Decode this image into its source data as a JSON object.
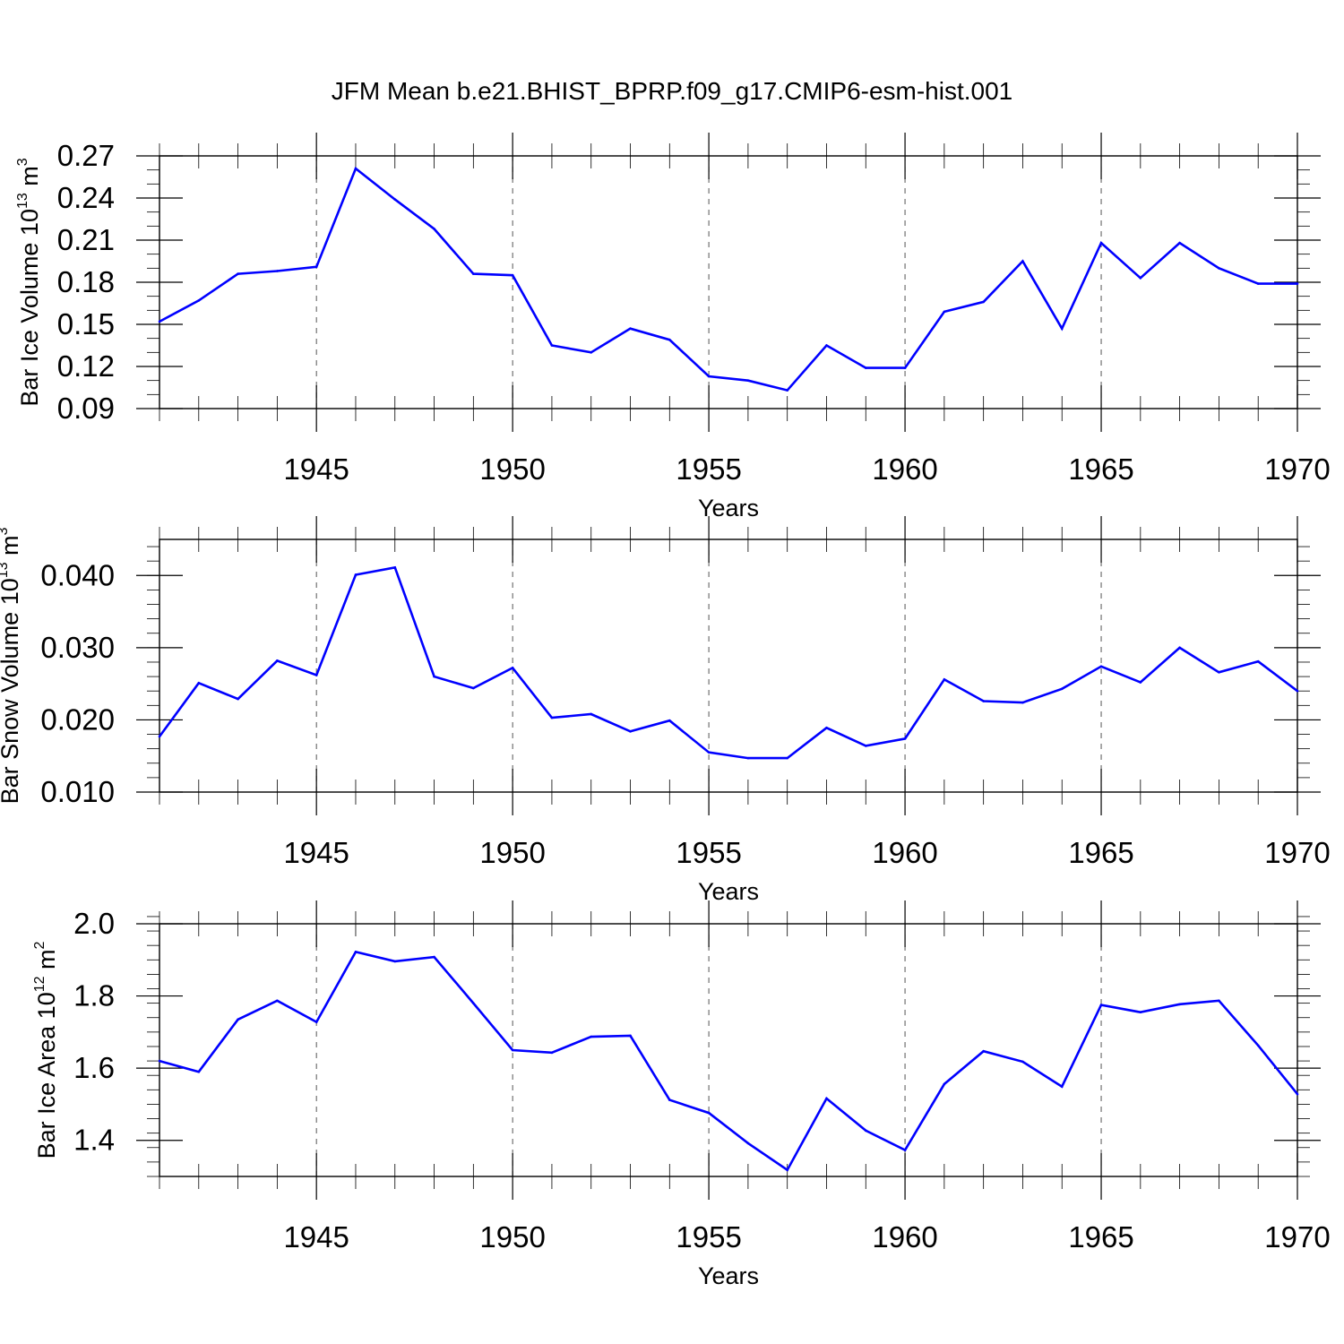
{
  "title": "JFM Mean b.e21.BHIST_BPRP.f09_g17.CMIP6-esm-hist.001",
  "colors": {
    "line": "#0000ff",
    "axis": "#000000",
    "grid": "#555555"
  },
  "chart_data": [
    {
      "type": "line",
      "name": "ice-volume",
      "ylabel_main": "Bar Ice Volume 10",
      "ylabel_exp": "13",
      "ylabel_unit": " m",
      "ylabel_unit_exp": "3",
      "xlabel": "Years",
      "xlim": [
        1941,
        1970
      ],
      "ylim": [
        0.09,
        0.27
      ],
      "yticks": [
        0.09,
        0.12,
        0.15,
        0.18,
        0.21,
        0.24,
        0.27
      ],
      "ytick_labels": [
        "0.09",
        "0.12",
        "0.15",
        "0.18",
        "0.21",
        "0.24",
        "0.27"
      ],
      "yminor_step": 0.01,
      "xticks": [
        1945,
        1950,
        1955,
        1960,
        1965,
        1970
      ],
      "xtick_labels": [
        "1945",
        "1950",
        "1955",
        "1960",
        "1965",
        "1970"
      ],
      "x": [
        1941,
        1942,
        1943,
        1944,
        1945,
        1946,
        1947,
        1948,
        1949,
        1950,
        1951,
        1952,
        1953,
        1954,
        1955,
        1956,
        1957,
        1958,
        1959,
        1960,
        1961,
        1962,
        1963,
        1964,
        1965,
        1966,
        1967,
        1968,
        1969,
        1970
      ],
      "values": [
        0.152,
        0.167,
        0.186,
        0.188,
        0.191,
        0.261,
        0.239,
        0.218,
        0.186,
        0.185,
        0.135,
        0.13,
        0.147,
        0.139,
        0.113,
        0.11,
        0.103,
        0.135,
        0.119,
        0.119,
        0.159,
        0.166,
        0.195,
        0.147,
        0.208,
        0.183,
        0.208,
        0.19,
        0.179,
        0.179
      ]
    },
    {
      "type": "line",
      "name": "snow-volume",
      "ylabel_main": "Bar Snow Volume 10",
      "ylabel_exp": "13",
      "ylabel_unit": " m",
      "ylabel_unit_exp": "3",
      "xlabel": "Years",
      "xlim": [
        1941,
        1970
      ],
      "ylim": [
        0.01,
        0.045
      ],
      "yticks": [
        0.01,
        0.02,
        0.03,
        0.04
      ],
      "ytick_labels": [
        "0.010",
        "0.020",
        "0.030",
        "0.040"
      ],
      "yminor_step": 0.002,
      "xticks": [
        1945,
        1950,
        1955,
        1960,
        1965,
        1970
      ],
      "xtick_labels": [
        "1945",
        "1950",
        "1955",
        "1960",
        "1965",
        "1970"
      ],
      "x": [
        1941,
        1942,
        1943,
        1944,
        1945,
        1946,
        1947,
        1948,
        1949,
        1950,
        1951,
        1952,
        1953,
        1954,
        1955,
        1956,
        1957,
        1958,
        1959,
        1960,
        1961,
        1962,
        1963,
        1964,
        1965,
        1966,
        1967,
        1968,
        1969,
        1970
      ],
      "values": [
        0.0177,
        0.0251,
        0.0229,
        0.0282,
        0.0262,
        0.0401,
        0.0411,
        0.026,
        0.0244,
        0.0272,
        0.0203,
        0.0208,
        0.0184,
        0.0199,
        0.0155,
        0.0147,
        0.0147,
        0.0189,
        0.0164,
        0.0174,
        0.0256,
        0.0226,
        0.0224,
        0.0243,
        0.0274,
        0.0252,
        0.03,
        0.0266,
        0.0281,
        0.024
      ]
    },
    {
      "type": "line",
      "name": "ice-area",
      "ylabel_main": "Bar Ice Area 10",
      "ylabel_exp": "12",
      "ylabel_unit": " m",
      "ylabel_unit_exp": "2",
      "xlabel": "Years",
      "xlim": [
        1941,
        1970
      ],
      "ylim": [
        1.3,
        2.0
      ],
      "yticks": [
        1.4,
        1.6,
        1.8,
        2.0
      ],
      "ytick_labels": [
        "1.4",
        "1.6",
        "1.8",
        "2.0"
      ],
      "yminor_step": 0.04,
      "xticks": [
        1945,
        1950,
        1955,
        1960,
        1965,
        1970
      ],
      "xtick_labels": [
        "1945",
        "1950",
        "1955",
        "1960",
        "1965",
        "1970"
      ],
      "x": [
        1941,
        1942,
        1943,
        1944,
        1945,
        1946,
        1947,
        1948,
        1949,
        1950,
        1951,
        1952,
        1953,
        1954,
        1955,
        1956,
        1957,
        1958,
        1959,
        1960,
        1961,
        1962,
        1963,
        1964,
        1965,
        1966,
        1967,
        1968,
        1969,
        1970
      ],
      "values": [
        1.62,
        1.59,
        1.735,
        1.787,
        1.728,
        1.922,
        1.896,
        1.908,
        1.78,
        1.65,
        1.643,
        1.687,
        1.69,
        1.512,
        1.476,
        1.392,
        1.318,
        1.516,
        1.427,
        1.373,
        1.556,
        1.647,
        1.618,
        1.549,
        1.775,
        1.755,
        1.777,
        1.787,
        1.663,
        1.528
      ]
    }
  ]
}
